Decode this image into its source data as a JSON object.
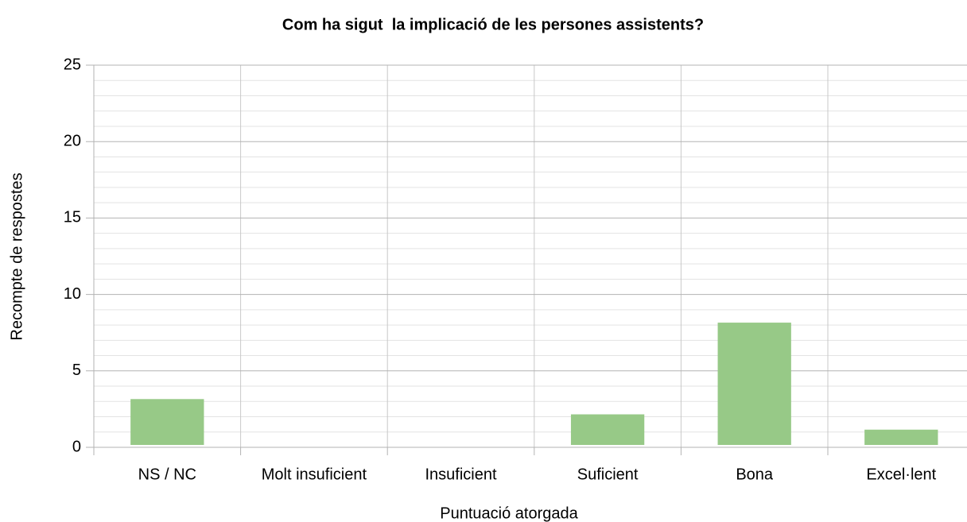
{
  "chart_data": {
    "type": "bar",
    "title": "Com ha sigut  la implicació de les persones assistents?",
    "x_label": "Puntuació atorgada",
    "y_label": "Recompte de respostes",
    "categories": [
      "NS / NC",
      "Molt insuficient",
      "Insuficient",
      "Suficient",
      "Bona",
      "Excel·lent"
    ],
    "values": [
      3,
      0,
      0,
      2,
      8,
      1
    ],
    "color": "#97c987",
    "ylim": [
      0,
      25
    ],
    "yticks": [
      0,
      5,
      10,
      15,
      20,
      25
    ],
    "grid": true
  }
}
